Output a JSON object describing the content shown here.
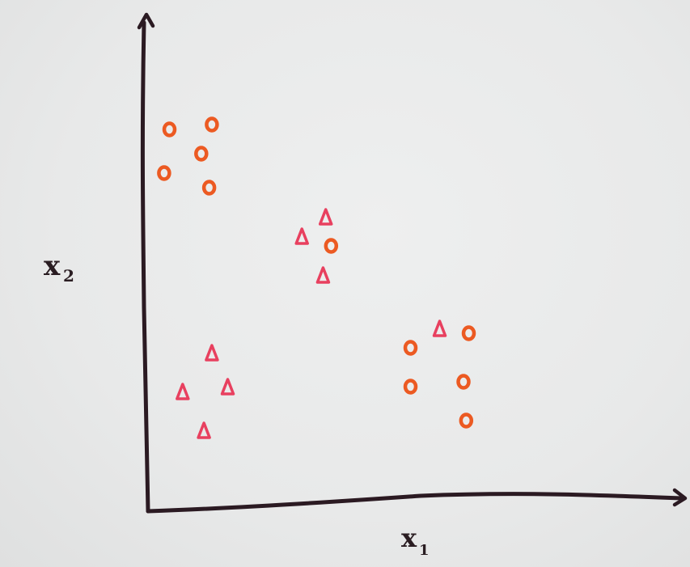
{
  "chart_data": {
    "type": "scatter",
    "title": "",
    "xlabel": "x",
    "xlabel_sub": "1",
    "ylabel": "x",
    "ylabel_sub": "2",
    "xlim": [
      0,
      10
    ],
    "ylim": [
      0,
      10
    ],
    "grid": false,
    "series": [
      {
        "marker": "circle",
        "color": "#ec5a22",
        "points": [
          {
            "x": 0.45,
            "y": 7.8
          },
          {
            "x": 1.25,
            "y": 7.9
          },
          {
            "x": 1.05,
            "y": 7.3
          },
          {
            "x": 0.35,
            "y": 6.9
          },
          {
            "x": 1.2,
            "y": 6.6
          },
          {
            "x": 3.5,
            "y": 5.4
          },
          {
            "x": 5.0,
            "y": 3.3
          },
          {
            "x": 6.1,
            "y": 3.6
          },
          {
            "x": 5.0,
            "y": 2.5
          },
          {
            "x": 6.0,
            "y": 2.6
          },
          {
            "x": 6.05,
            "y": 1.8
          }
        ]
      },
      {
        "marker": "triangle",
        "color": "#e8405f",
        "points": [
          {
            "x": 3.4,
            "y": 6.0
          },
          {
            "x": 2.95,
            "y": 5.6
          },
          {
            "x": 3.35,
            "y": 4.8
          },
          {
            "x": 5.55,
            "y": 3.7
          },
          {
            "x": 1.25,
            "y": 3.2
          },
          {
            "x": 0.7,
            "y": 2.4
          },
          {
            "x": 1.55,
            "y": 2.5
          },
          {
            "x": 1.1,
            "y": 1.6
          }
        ]
      }
    ]
  }
}
